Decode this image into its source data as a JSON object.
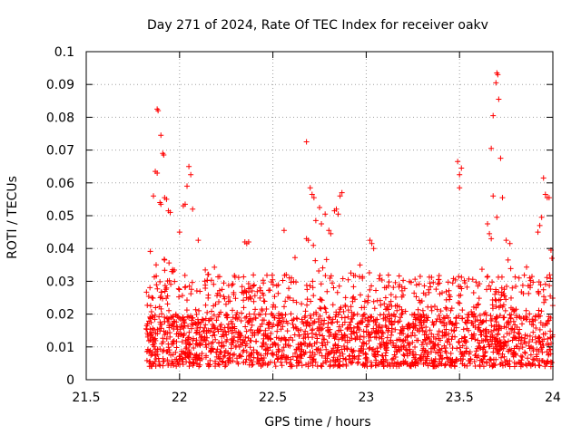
{
  "chart_data": {
    "type": "scatter",
    "title": "Day 271 of 2024, Rate Of TEC Index for receiver oakv",
    "xlabel": "GPS time / hours",
    "ylabel": "ROTI / TECUs",
    "xlim": [
      21.5,
      24
    ],
    "ylim": [
      0,
      0.1
    ],
    "xticks": [
      21.5,
      22,
      22.5,
      23,
      23.5,
      24
    ],
    "xtick_labels": [
      "21.5",
      "22",
      "22.5",
      "23",
      "23.5",
      "24"
    ],
    "yticks": [
      0,
      0.01,
      0.02,
      0.03,
      0.04,
      0.05,
      0.06,
      0.07,
      0.08,
      0.09,
      0.1
    ],
    "ytick_labels": [
      "0",
      "0.01",
      "0.02",
      "0.03",
      "0.04",
      "0.05",
      "0.06",
      "0.07",
      "0.08",
      "0.09",
      "0.1"
    ],
    "grid": true,
    "marker": "+",
    "marker_color": "#ff0000",
    "x_range_observed": [
      21.82,
      24.0
    ],
    "series": [
      {
        "name": "ROTI",
        "outliers": [
          [
            21.88,
            0.0825
          ],
          [
            21.885,
            0.082
          ],
          [
            21.9,
            0.0745
          ],
          [
            21.91,
            0.069
          ],
          [
            21.915,
            0.0685
          ],
          [
            21.87,
            0.0635
          ],
          [
            21.88,
            0.063
          ],
          [
            21.86,
            0.056
          ],
          [
            21.895,
            0.054
          ],
          [
            21.9,
            0.0535
          ],
          [
            21.94,
            0.0515
          ],
          [
            21.95,
            0.051
          ],
          [
            21.92,
            0.0555
          ],
          [
            21.93,
            0.055
          ],
          [
            22.05,
            0.065
          ],
          [
            22.06,
            0.0625
          ],
          [
            22.04,
            0.059
          ],
          [
            22.02,
            0.053
          ],
          [
            22.03,
            0.0535
          ],
          [
            22.07,
            0.052
          ],
          [
            22.0,
            0.045
          ],
          [
            22.1,
            0.0425
          ],
          [
            22.35,
            0.042
          ],
          [
            22.36,
            0.0415
          ],
          [
            22.37,
            0.042
          ],
          [
            22.56,
            0.0455
          ],
          [
            22.68,
            0.0725
          ],
          [
            22.7,
            0.0585
          ],
          [
            22.71,
            0.0565
          ],
          [
            22.72,
            0.0555
          ],
          [
            22.75,
            0.0525
          ],
          [
            22.78,
            0.0505
          ],
          [
            22.73,
            0.0485
          ],
          [
            22.76,
            0.0475
          ],
          [
            22.87,
            0.057
          ],
          [
            22.86,
            0.056
          ],
          [
            22.84,
            0.052
          ],
          [
            22.83,
            0.0515
          ],
          [
            22.85,
            0.0505
          ],
          [
            22.8,
            0.0455
          ],
          [
            22.81,
            0.0445
          ],
          [
            22.68,
            0.043
          ],
          [
            22.69,
            0.0425
          ],
          [
            23.02,
            0.0425
          ],
          [
            23.03,
            0.0415
          ],
          [
            23.04,
            0.04
          ],
          [
            23.49,
            0.0665
          ],
          [
            23.5,
            0.0625
          ],
          [
            23.51,
            0.0645
          ],
          [
            23.5,
            0.0585
          ],
          [
            23.65,
            0.0475
          ],
          [
            23.66,
            0.0445
          ],
          [
            23.67,
            0.043
          ],
          [
            23.68,
            0.056
          ],
          [
            23.67,
            0.0705
          ],
          [
            23.7,
            0.0935
          ],
          [
            23.705,
            0.093
          ],
          [
            23.695,
            0.0905
          ],
          [
            23.71,
            0.0855
          ],
          [
            23.68,
            0.0805
          ],
          [
            23.72,
            0.0675
          ],
          [
            23.73,
            0.0555
          ],
          [
            23.7,
            0.0495
          ],
          [
            23.75,
            0.0425
          ],
          [
            23.77,
            0.0415
          ],
          [
            23.76,
            0.0365
          ],
          [
            23.95,
            0.0615
          ],
          [
            23.96,
            0.0565
          ],
          [
            23.97,
            0.0555
          ],
          [
            23.98,
            0.0555
          ],
          [
            23.94,
            0.0495
          ],
          [
            23.93,
            0.047
          ],
          [
            23.92,
            0.045
          ],
          [
            23.99,
            0.0395
          ],
          [
            23.995,
            0.037
          ]
        ]
      }
    ]
  }
}
